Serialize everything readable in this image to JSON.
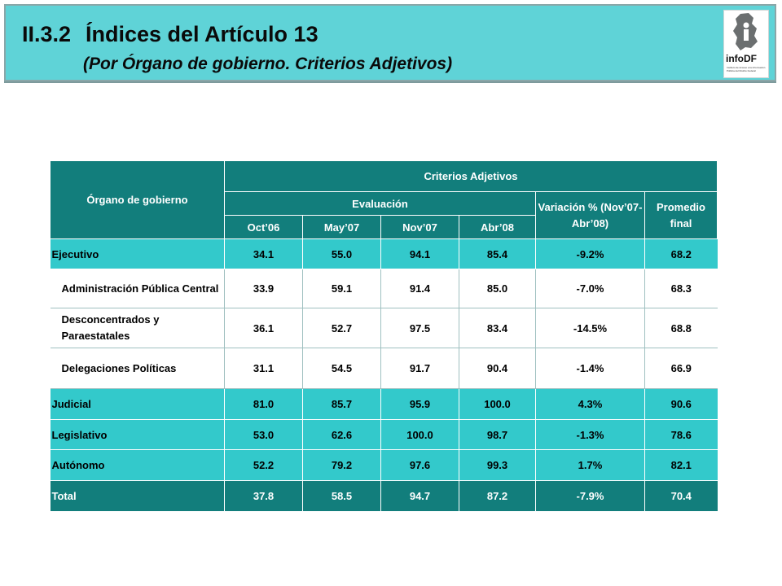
{
  "header": {
    "section_number": "II.3.2",
    "title": "Índices del Artículo 13",
    "subtitle": "(Por Órgano de gobierno. Criterios Adjetivos)",
    "logo_text": "infoDF",
    "logo_caption": "Instituto de Acceso a la Información Pública del Distrito Federal"
  },
  "table": {
    "col_organo": "Órgano de gobierno",
    "col_criterios": "Criterios Adjetivos",
    "col_evaluacion": "Evaluación",
    "col_variacion": "Variación % (Nov’07-Abr’08)",
    "col_promedio": "Promedio final",
    "periods": [
      "Oct’06",
      "May’07",
      "Nov’07",
      "Abr’08"
    ],
    "rows": [
      {
        "label": "Ejecutivo",
        "values": [
          "34.1",
          "55.0",
          "94.1",
          "85.4"
        ],
        "variacion": "-9.2%",
        "promedio": "68.2"
      },
      {
        "label": "Administración Pública Central",
        "values": [
          "33.9",
          "59.1",
          "91.4",
          "85.0"
        ],
        "variacion": "-7.0%",
        "promedio": "68.3"
      },
      {
        "label": "Desconcentrados y Paraestatales",
        "values": [
          "36.1",
          "52.7",
          "97.5",
          "83.4"
        ],
        "variacion": "-14.5%",
        "promedio": "68.8"
      },
      {
        "label": "Delegaciones Políticas",
        "values": [
          "31.1",
          "54.5",
          "91.7",
          "90.4"
        ],
        "variacion": "-1.4%",
        "promedio": "66.9"
      },
      {
        "label": "Judicial",
        "values": [
          "81.0",
          "85.7",
          "95.9",
          "100.0"
        ],
        "variacion": "4.3%",
        "promedio": "90.6"
      },
      {
        "label": "Legislativo",
        "values": [
          "53.0",
          "62.6",
          "100.0",
          "98.7"
        ],
        "variacion": "-1.3%",
        "promedio": "78.6"
      },
      {
        "label": "Autónomo",
        "values": [
          "52.2",
          "79.2",
          "97.6",
          "99.3"
        ],
        "variacion": "1.7%",
        "promedio": "82.1"
      },
      {
        "label": "Total",
        "values": [
          "37.8",
          "58.5",
          "94.7",
          "87.2"
        ],
        "variacion": "-7.9%",
        "promedio": "70.4"
      }
    ]
  },
  "colors": {
    "header_bg": "#5fd3d7",
    "table_dark": "#127e7c",
    "table_cyan": "#33c9cb"
  }
}
